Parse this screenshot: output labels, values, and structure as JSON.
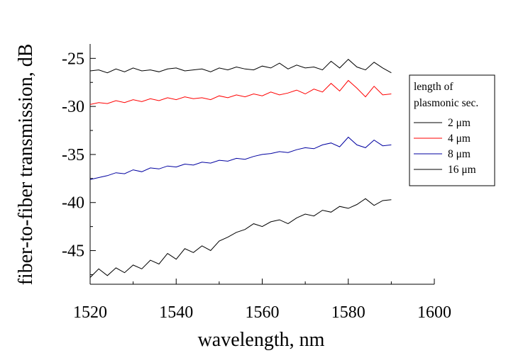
{
  "chart_data": {
    "type": "line",
    "xlabel": "wavelength, nm",
    "ylabel": "fiber-to-fiber transmission, dB",
    "xlim": [
      1520,
      1600
    ],
    "ylim": [
      -48.5,
      -23.5
    ],
    "x_ticks": [
      1520,
      1540,
      1560,
      1580,
      1600
    ],
    "x_tick_labels": [
      "1520",
      "1540",
      "1560",
      "1580",
      "1600"
    ],
    "y_ticks": [
      -25,
      -30,
      -35,
      -40,
      -45
    ],
    "y_tick_labels": [
      "-25",
      "-30",
      "-35",
      "-40",
      "-45"
    ],
    "grid": false,
    "legend": {
      "title_lines": [
        "length of",
        "plasmonic sec."
      ],
      "placement": "right"
    },
    "series": [
      {
        "name": "2 μm",
        "color": "#000000",
        "x": [
          1520,
          1522,
          1524,
          1526,
          1528,
          1530,
          1532,
          1534,
          1536,
          1538,
          1540,
          1542,
          1544,
          1546,
          1548,
          1550,
          1552,
          1554,
          1556,
          1558,
          1560,
          1562,
          1564,
          1566,
          1568,
          1570,
          1572,
          1574,
          1576,
          1578,
          1580,
          1582,
          1584,
          1586,
          1588,
          1590
        ],
        "y": [
          -26.3,
          -26.2,
          -26.5,
          -26.1,
          -26.4,
          -26.0,
          -26.3,
          -26.2,
          -26.4,
          -26.1,
          -26.0,
          -26.3,
          -26.2,
          -26.1,
          -26.4,
          -26.0,
          -26.2,
          -25.9,
          -26.1,
          -26.2,
          -25.8,
          -26.0,
          -25.5,
          -26.1,
          -25.7,
          -26.0,
          -25.9,
          -26.2,
          -25.3,
          -26.0,
          -25.1,
          -25.9,
          -26.2,
          -25.4,
          -26.0,
          -26.5
        ]
      },
      {
        "name": "4 μm",
        "color": "#ff0000",
        "x": [
          1520,
          1522,
          1524,
          1526,
          1528,
          1530,
          1532,
          1534,
          1536,
          1538,
          1540,
          1542,
          1544,
          1546,
          1548,
          1550,
          1552,
          1554,
          1556,
          1558,
          1560,
          1562,
          1564,
          1566,
          1568,
          1570,
          1572,
          1574,
          1576,
          1578,
          1580,
          1582,
          1584,
          1586,
          1588,
          1590
        ],
        "y": [
          -29.8,
          -29.6,
          -29.7,
          -29.4,
          -29.6,
          -29.3,
          -29.5,
          -29.2,
          -29.4,
          -29.1,
          -29.3,
          -29.0,
          -29.2,
          -29.1,
          -29.3,
          -28.9,
          -29.1,
          -28.8,
          -29.0,
          -28.7,
          -28.9,
          -28.5,
          -28.8,
          -28.6,
          -28.3,
          -28.7,
          -28.2,
          -28.5,
          -27.6,
          -28.4,
          -27.3,
          -28.1,
          -29.0,
          -27.9,
          -28.8,
          -28.7
        ]
      },
      {
        "name": "8 μm",
        "color": "#0000a0",
        "x": [
          1520,
          1522,
          1524,
          1526,
          1528,
          1530,
          1532,
          1534,
          1536,
          1538,
          1540,
          1542,
          1544,
          1546,
          1548,
          1550,
          1552,
          1554,
          1556,
          1558,
          1560,
          1562,
          1564,
          1566,
          1568,
          1570,
          1572,
          1574,
          1576,
          1578,
          1580,
          1582,
          1584,
          1586,
          1588,
          1590
        ],
        "y": [
          -37.6,
          -37.4,
          -37.2,
          -36.9,
          -37.0,
          -36.6,
          -36.8,
          -36.4,
          -36.5,
          -36.2,
          -36.3,
          -36.0,
          -36.1,
          -35.8,
          -35.9,
          -35.6,
          -35.7,
          -35.4,
          -35.5,
          -35.2,
          -35.0,
          -34.9,
          -34.7,
          -34.8,
          -34.5,
          -34.3,
          -34.4,
          -34.0,
          -33.8,
          -34.2,
          -33.2,
          -34.0,
          -34.3,
          -33.5,
          -34.1,
          -34.0
        ]
      },
      {
        "name": "16 μm",
        "color": "#000000",
        "x": [
          1520,
          1522,
          1524,
          1526,
          1528,
          1530,
          1532,
          1534,
          1536,
          1538,
          1540,
          1542,
          1544,
          1546,
          1548,
          1550,
          1552,
          1554,
          1556,
          1558,
          1560,
          1562,
          1564,
          1566,
          1568,
          1570,
          1572,
          1574,
          1576,
          1578,
          1580,
          1582,
          1584,
          1586,
          1588,
          1590
        ],
        "y": [
          -47.8,
          -46.9,
          -47.6,
          -46.8,
          -47.3,
          -46.5,
          -46.9,
          -46.0,
          -46.4,
          -45.3,
          -45.9,
          -44.8,
          -45.2,
          -44.5,
          -45.0,
          -44.0,
          -43.6,
          -43.1,
          -42.8,
          -42.2,
          -42.5,
          -42.0,
          -41.8,
          -42.2,
          -41.6,
          -41.2,
          -41.4,
          -40.8,
          -41.0,
          -40.4,
          -40.6,
          -40.2,
          -39.6,
          -40.3,
          -39.8,
          -39.7
        ]
      }
    ]
  }
}
